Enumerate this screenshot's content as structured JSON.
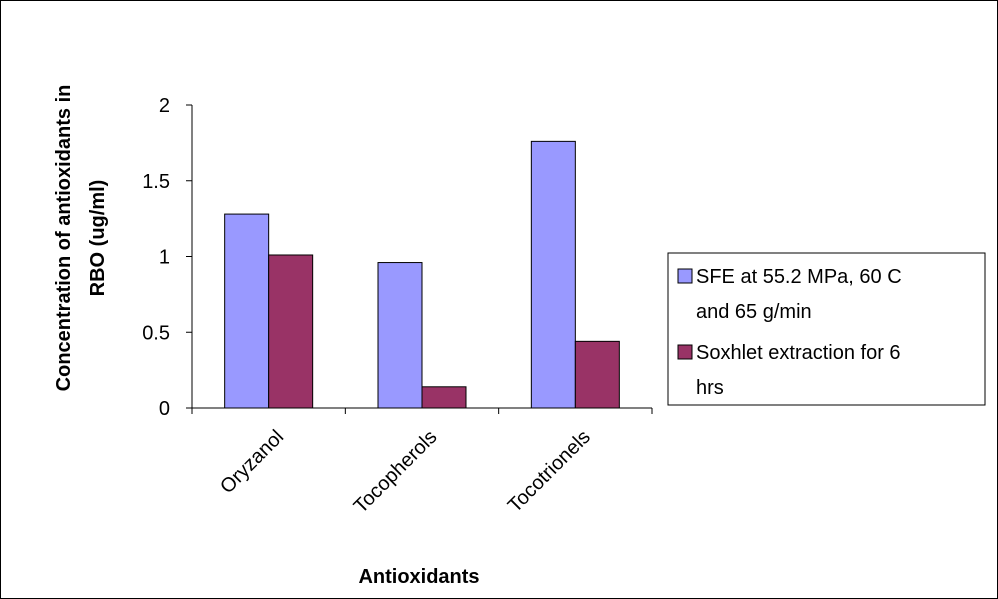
{
  "chart_data": {
    "type": "bar",
    "title": "",
    "xlabel": "Antioxidants",
    "ylabel_lines": [
      "Concentration of antioxidants in",
      "RBO (ug/ml)"
    ],
    "categories": [
      "Oryzanol",
      "Tocopherols",
      "Tocotrionels"
    ],
    "ylim": [
      0,
      2
    ],
    "yticks": [
      0,
      0.5,
      1,
      1.5,
      2
    ],
    "ytick_labels": [
      "0",
      "0.5",
      "1",
      "1.5",
      "2"
    ],
    "grid": false,
    "legend_position": "right",
    "series": [
      {
        "name_lines": [
          "SFE at 55.2 MPa, 60 C",
          "and 65 g/min"
        ],
        "color": "#9999ff",
        "values": [
          1.28,
          0.96,
          1.76
        ]
      },
      {
        "name_lines": [
          "Soxhlet extraction for 6",
          "hrs"
        ],
        "color": "#993366",
        "values": [
          1.01,
          0.14,
          0.44
        ]
      }
    ]
  }
}
